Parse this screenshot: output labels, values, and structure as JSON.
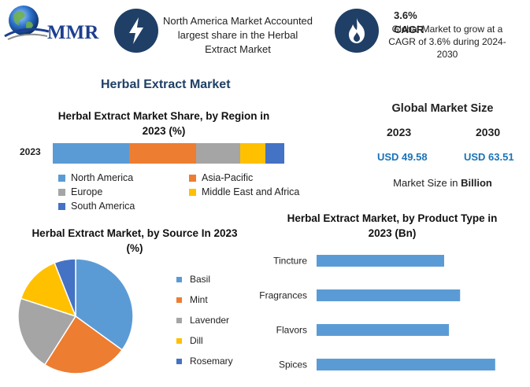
{
  "brand": {
    "name": "MMR"
  },
  "header": {
    "card1": {
      "icon": "lightning-icon",
      "text": "North America Market Accounted largest share in the Herbal Extract Market"
    },
    "card2": {
      "icon": "flame-icon",
      "title": "3.6% CAGR",
      "text": "Global Market to grow at a CAGR of 3.6% during 2024-2030"
    }
  },
  "main_title": "Herbal Extract Market",
  "global_size": {
    "title": "Global Market Size",
    "year1": "2023",
    "value1": "USD 49.58",
    "year2": "2030",
    "value2": "USD 63.51",
    "unit_prefix": "Market Size in",
    "unit": "Billion"
  },
  "colors": {
    "blue": "#5b9bd5",
    "orange": "#ed7d31",
    "gray": "#a5a5a5",
    "yellow": "#ffc000",
    "darkblue": "#4472c4",
    "navy": "#1f3f66",
    "usd": "#1a73b8"
  },
  "chart_data": [
    {
      "type": "bar",
      "orientation": "horizontal-stacked",
      "title": "Herbal Extract Market Share, by Region in 2023 (%)",
      "categories": [
        "2023"
      ],
      "series": [
        {
          "name": "North America",
          "values": [
            33
          ],
          "color": "#5b9bd5"
        },
        {
          "name": "Asia-Pacific",
          "values": [
            29
          ],
          "color": "#ed7d31"
        },
        {
          "name": "Europe",
          "values": [
            19
          ],
          "color": "#a5a5a5"
        },
        {
          "name": "Middle East and Africa",
          "values": [
            11
          ],
          "color": "#ffc000"
        },
        {
          "name": "South America",
          "values": [
            8
          ],
          "color": "#4472c4"
        }
      ],
      "legend": "bottom"
    },
    {
      "type": "pie",
      "title": "Herbal Extract Market, by Source In 2023 (%)",
      "labels": [
        "Basil",
        "Mint",
        "Lavender",
        "Dill",
        "Rosemary"
      ],
      "values": [
        35,
        24,
        21,
        14,
        6
      ],
      "colors": [
        "#5b9bd5",
        "#ed7d31",
        "#a5a5a5",
        "#ffc000",
        "#4472c4"
      ],
      "legend": "right"
    },
    {
      "type": "bar",
      "orientation": "horizontal",
      "title": "Herbal Extract Market, by Product Type in 2023 (Bn)",
      "categories": [
        "Tincture",
        "Fragrances",
        "Flavors",
        "Spices"
      ],
      "values": [
        8.0,
        9.0,
        8.3,
        11.2
      ],
      "xlim": [
        0,
        12
      ],
      "color": "#5b9bd5",
      "grid": false
    }
  ]
}
